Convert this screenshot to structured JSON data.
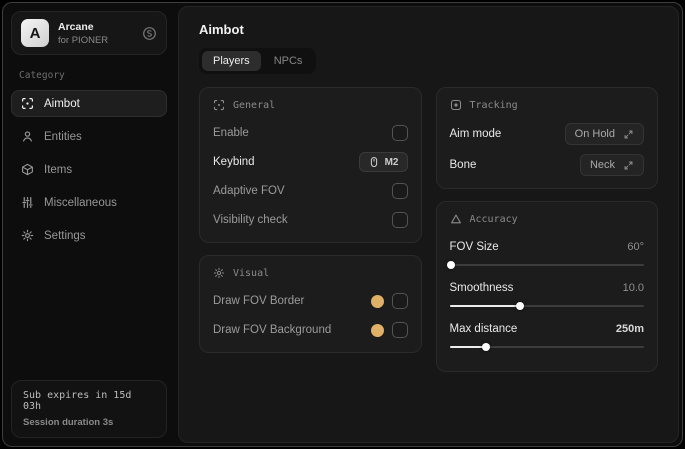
{
  "colors": {
    "accent_swatch": "#e0af68"
  },
  "sidebar": {
    "logo_letter": "A",
    "app_name": "Arcane",
    "app_subtitle": "for PIONER",
    "category_label": "Category",
    "items": [
      {
        "label": "Aimbot",
        "icon": "crosshair-icon",
        "active": true
      },
      {
        "label": "Entities",
        "icon": "person-icon",
        "active": false
      },
      {
        "label": "Items",
        "icon": "cube-icon",
        "active": false
      },
      {
        "label": "Miscellaneous",
        "icon": "sliders-icon",
        "active": false
      },
      {
        "label": "Settings",
        "icon": "gear-icon",
        "active": false
      }
    ],
    "subscription": {
      "expires": "Sub expires in 15d 03h",
      "session": "Session duration 3s"
    }
  },
  "main": {
    "title": "Aimbot",
    "tabs": [
      {
        "label": "Players",
        "active": true
      },
      {
        "label": "NPCs",
        "active": false
      }
    ],
    "sections": {
      "general": {
        "title": "General",
        "rows": [
          {
            "label": "Enable",
            "control": "checkbox",
            "checked": false
          },
          {
            "label": "Keybind",
            "control": "keybind",
            "value": "M2"
          },
          {
            "label": "Adaptive FOV",
            "control": "checkbox",
            "checked": false
          },
          {
            "label": "Visibility check",
            "control": "checkbox",
            "checked": false
          }
        ]
      },
      "visual": {
        "title": "Visual",
        "rows": [
          {
            "label": "Draw FOV Border",
            "control": "color-checkbox",
            "color": "#e0af68",
            "checked": false
          },
          {
            "label": "Draw FOV Background",
            "control": "color-checkbox",
            "color": "#e0af68",
            "checked": false
          }
        ]
      },
      "tracking": {
        "title": "Tracking",
        "rows": [
          {
            "label": "Aim mode",
            "control": "dropdown",
            "value": "On Hold"
          },
          {
            "label": "Bone",
            "control": "dropdown",
            "value": "Neck"
          }
        ]
      },
      "accuracy": {
        "title": "Accuracy",
        "rows": [
          {
            "label": "FOV Size",
            "value": "60°",
            "percent": 1
          },
          {
            "label": "Smoothness",
            "value": "10.0",
            "percent": 36
          },
          {
            "label": "Max distance",
            "value": "250m",
            "percent": 19
          }
        ]
      }
    }
  }
}
